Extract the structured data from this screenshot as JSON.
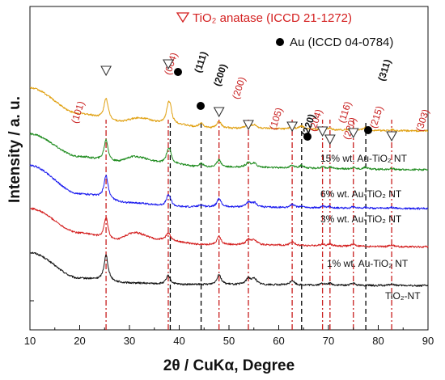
{
  "chart_data": {
    "type": "line",
    "xlabel": "2θ / CuKα, Degree",
    "ylabel": "Intensity / a. u.",
    "xlim": [
      10,
      90
    ],
    "xticks": [
      10,
      20,
      30,
      40,
      50,
      60,
      70,
      80,
      90
    ],
    "grid": false,
    "legend": {
      "placement": "top-right",
      "entries": [
        {
          "marker": "triangle-open",
          "label": "TiO₂ anatase (ICCD 21-1272)",
          "color": "#d42020"
        },
        {
          "marker": "circle-filled",
          "label": "Au (ICCD 04-0784)",
          "color": "#000000"
        }
      ]
    },
    "reference_lines": [
      {
        "phase": "TiO2 anatase",
        "style": "dash-dot",
        "color": "#c81e1e",
        "positions": [
          25.3,
          37.8,
          48.0,
          53.9,
          62.7,
          68.8,
          70.3,
          75.0,
          82.7
        ]
      },
      {
        "phase": "Au",
        "style": "dashed",
        "color": "#000000",
        "positions": [
          38.2,
          44.4,
          64.6,
          77.5
        ]
      }
    ],
    "peak_labels": [
      {
        "text": "(101)",
        "x": 25.3,
        "phase": "anatase"
      },
      {
        "text": "(004)",
        "x": 37.8,
        "phase": "anatase"
      },
      {
        "text": "(200)",
        "x": 48.0,
        "phase": "anatase"
      },
      {
        "text": "(105)",
        "x": 53.9,
        "phase": "anatase"
      },
      {
        "text": "(204)",
        "x": 62.7,
        "phase": "anatase"
      },
      {
        "text": "(116)",
        "x": 68.8,
        "phase": "anatase"
      },
      {
        "text": "(220)",
        "x": 70.3,
        "phase": "anatase"
      },
      {
        "text": "(215)",
        "x": 75.0,
        "phase": "anatase"
      },
      {
        "text": "(303)",
        "x": 82.7,
        "phase": "anatase"
      },
      {
        "text": "(111)",
        "x": 38.2,
        "phase": "Au"
      },
      {
        "text": "(200)",
        "x": 44.4,
        "phase": "Au"
      },
      {
        "text": "(220)",
        "x": 64.6,
        "phase": "Au"
      },
      {
        "text": "(311)",
        "x": 77.5,
        "phase": "Au"
      }
    ],
    "series": [
      {
        "name": "TiO₂-NT",
        "color": "#111111",
        "offset": 0,
        "background": [
          [
            10,
            0.62
          ],
          [
            20,
            0.12
          ],
          [
            30,
            0.03
          ],
          [
            40,
            0.0
          ],
          [
            90,
            -0.02
          ]
        ],
        "peaks": [
          [
            25.3,
            0.5,
            0.5
          ],
          [
            37.8,
            0.17,
            0.5
          ],
          [
            48.0,
            0.2,
            0.5
          ],
          [
            53.9,
            0.12,
            0.6
          ],
          [
            55.1,
            0.11,
            0.6
          ],
          [
            62.7,
            0.09,
            0.5
          ],
          [
            68.8,
            0.04,
            0.4
          ],
          [
            70.3,
            0.04,
            0.4
          ],
          [
            75.0,
            0.05,
            0.5
          ],
          [
            82.7,
            0.03,
            0.5
          ]
        ]
      },
      {
        "name": "1% wt. Au-TiO₂ NT",
        "color": "#d42020",
        "offset": 0.75,
        "background": [
          [
            10,
            0.72
          ],
          [
            20,
            0.25
          ],
          [
            27,
            0.1
          ],
          [
            31,
            0.25
          ],
          [
            36,
            0.12
          ],
          [
            45,
            0.02
          ],
          [
            90,
            -0.02
          ]
        ],
        "peaks": [
          [
            25.3,
            0.42,
            0.5
          ],
          [
            37.8,
            0.14,
            0.5
          ],
          [
            48.0,
            0.16,
            0.5
          ],
          [
            53.9,
            0.1,
            0.6
          ],
          [
            55.1,
            0.09,
            0.6
          ],
          [
            62.7,
            0.07,
            0.5
          ],
          [
            68.8,
            0.04,
            0.4
          ],
          [
            70.3,
            0.04,
            0.4
          ],
          [
            75.0,
            0.04,
            0.5
          ],
          [
            82.7,
            0.03,
            0.5
          ]
        ]
      },
      {
        "name": "3% wt. Au-TiO₂ NT",
        "color": "#1a1aee",
        "offset": 1.5,
        "background": [
          [
            10,
            0.8
          ],
          [
            20,
            0.25
          ],
          [
            30,
            0.08
          ],
          [
            40,
            0.0
          ],
          [
            90,
            -0.03
          ]
        ],
        "peaks": [
          [
            25.3,
            0.45,
            0.5
          ],
          [
            37.8,
            0.19,
            0.5
          ],
          [
            38.2,
            0.06,
            0.4
          ],
          [
            44.4,
            0.04,
            0.5
          ],
          [
            48.0,
            0.16,
            0.5
          ],
          [
            53.9,
            0.09,
            0.6
          ],
          [
            55.1,
            0.08,
            0.6
          ],
          [
            62.7,
            0.06,
            0.5
          ],
          [
            64.6,
            0.03,
            0.5
          ],
          [
            68.8,
            0.03,
            0.4
          ],
          [
            70.3,
            0.03,
            0.4
          ],
          [
            75.0,
            0.03,
            0.5
          ],
          [
            77.5,
            0.02,
            0.5
          ],
          [
            82.7,
            0.02,
            0.5
          ]
        ]
      },
      {
        "name": "6% wt. Au-TiO₂ NT",
        "color": "#1f8c1f",
        "offset": 2.25,
        "background": [
          [
            10,
            0.66
          ],
          [
            20,
            0.22
          ],
          [
            27,
            0.12
          ],
          [
            31,
            0.22
          ],
          [
            37,
            0.1
          ],
          [
            45,
            0.02
          ],
          [
            90,
            -0.03
          ]
        ],
        "peaks": [
          [
            25.3,
            0.42,
            0.5
          ],
          [
            37.8,
            0.23,
            0.5
          ],
          [
            38.2,
            0.1,
            0.4
          ],
          [
            44.4,
            0.07,
            0.5
          ],
          [
            48.0,
            0.14,
            0.5
          ],
          [
            53.9,
            0.08,
            0.6
          ],
          [
            55.1,
            0.07,
            0.6
          ],
          [
            62.7,
            0.05,
            0.5
          ],
          [
            64.6,
            0.05,
            0.5
          ],
          [
            68.8,
            0.03,
            0.4
          ],
          [
            70.3,
            0.03,
            0.4
          ],
          [
            75.0,
            0.03,
            0.5
          ],
          [
            77.5,
            0.04,
            0.5
          ],
          [
            82.7,
            0.02,
            0.5
          ]
        ]
      },
      {
        "name": "15% wt. Au-TiO₂ NT",
        "color": "#e0a010",
        "offset": 3.0,
        "background": [
          [
            10,
            0.8
          ],
          [
            20,
            0.3
          ],
          [
            28,
            0.15
          ],
          [
            32,
            0.22
          ],
          [
            37,
            0.12
          ],
          [
            46,
            0.02
          ],
          [
            90,
            -0.03
          ]
        ],
        "peaks": [
          [
            25.3,
            0.42,
            0.5
          ],
          [
            37.8,
            0.3,
            0.5
          ],
          [
            38.2,
            0.2,
            0.4
          ],
          [
            44.4,
            0.1,
            0.5
          ],
          [
            48.0,
            0.14,
            0.5
          ],
          [
            53.9,
            0.07,
            0.6
          ],
          [
            55.1,
            0.06,
            0.6
          ],
          [
            62.7,
            0.05,
            0.5
          ],
          [
            64.6,
            0.06,
            0.5
          ],
          [
            68.8,
            0.03,
            0.4
          ],
          [
            70.3,
            0.03,
            0.4
          ],
          [
            75.0,
            0.03,
            0.5
          ],
          [
            77.5,
            0.06,
            0.5
          ],
          [
            82.7,
            0.02,
            0.5
          ]
        ]
      }
    ],
    "annotations": [
      {
        "type": "anatase-triangles",
        "x": [
          25.3,
          37.8,
          48.0,
          53.9,
          62.7,
          68.8,
          70.3,
          75.0,
          82.7
        ]
      },
      {
        "type": "au-dots",
        "x": [
          38.2,
          44.4,
          64.6,
          77.5
        ]
      }
    ]
  }
}
